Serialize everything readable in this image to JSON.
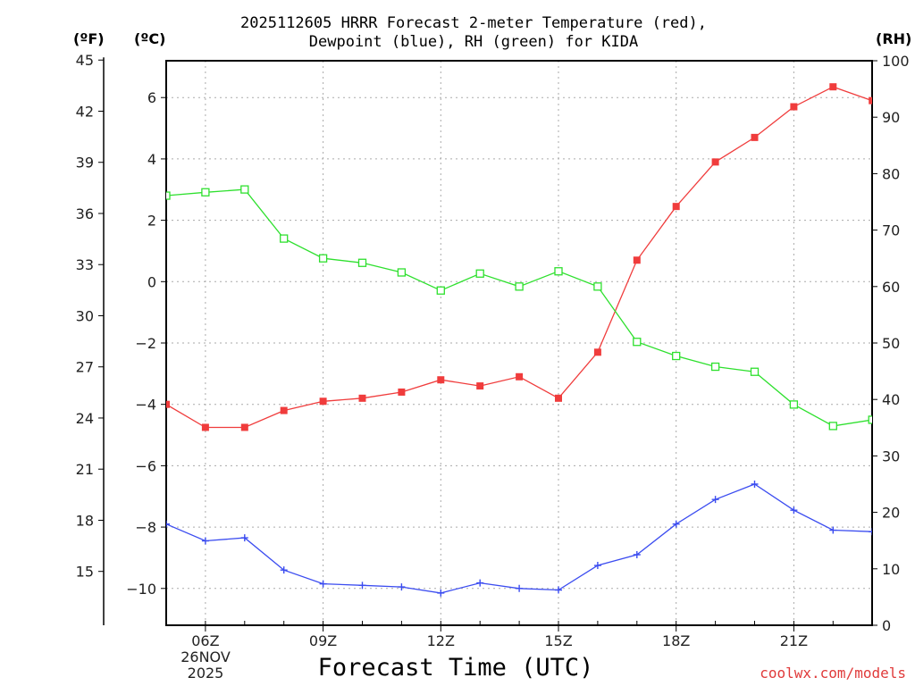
{
  "header": {
    "title_line1": "2025112605 HRRR Forecast 2-meter Temperature (red),",
    "title_line2": "Dewpoint (blue), RH (green) for KIDA"
  },
  "units": {
    "fahrenheit": "(ºF)",
    "celsius": "(ºC)",
    "rh": "(RH)"
  },
  "footer": {
    "xlabel": "Forecast Time (UTC)",
    "date_day": "26NOV",
    "date_year": "2025",
    "credit": "coolwx.com/models"
  },
  "colors": {
    "temperature": "#f03c3c",
    "dewpoint": "#3b4cf0",
    "rh": "#2ee02e",
    "grid": "#aaaaaa"
  },
  "chart_data": {
    "type": "line",
    "x": [
      "05Z",
      "06Z",
      "07Z",
      "08Z",
      "09Z",
      "10Z",
      "11Z",
      "12Z",
      "13Z",
      "14Z",
      "15Z",
      "16Z",
      "17Z",
      "18Z",
      "19Z",
      "20Z",
      "21Z",
      "22Z",
      "23Z"
    ],
    "xticks": [
      "06Z",
      "09Z",
      "12Z",
      "15Z",
      "18Z",
      "21Z"
    ],
    "ylim_c": [
      -11.2,
      7.2
    ],
    "yticks_c": [
      -10,
      -8,
      -6,
      -4,
      -2,
      0,
      2,
      4,
      6
    ],
    "ylim_f": [
      11.84,
      44.96
    ],
    "yticks_f": [
      15,
      18,
      21,
      24,
      27,
      30,
      33,
      36,
      39,
      42,
      45
    ],
    "ylim_rh": [
      0,
      100
    ],
    "yticks_rh": [
      0,
      10,
      20,
      30,
      40,
      50,
      60,
      70,
      80,
      90,
      100
    ],
    "grid": true,
    "series": [
      {
        "name": "Temperature (°C)",
        "axis": "celsius",
        "color": "temperature",
        "marker": "filled-square",
        "values": [
          -4.0,
          -4.75,
          -4.75,
          -4.2,
          -3.9,
          -3.8,
          -3.6,
          -3.2,
          -3.4,
          -3.1,
          -3.8,
          -2.3,
          0.7,
          2.45,
          3.9,
          4.7,
          5.7,
          6.35,
          5.9
        ]
      },
      {
        "name": "Dewpoint (°C)",
        "axis": "celsius",
        "color": "dewpoint",
        "marker": "plus",
        "values": [
          -7.9,
          -8.45,
          -8.35,
          -9.4,
          -9.85,
          -9.9,
          -9.95,
          -10.15,
          -9.82,
          -10.0,
          -10.05,
          -9.25,
          -8.9,
          -7.9,
          -7.1,
          -6.6,
          -7.45,
          -8.1,
          -8.15
        ]
      },
      {
        "name": "RH (%)",
        "axis": "rh",
        "color": "rh",
        "marker": "open-square",
        "values": [
          76.1,
          76.7,
          77.2,
          68.5,
          65.0,
          64.2,
          62.5,
          59.3,
          62.3,
          60.0,
          62.7,
          60.0,
          50.2,
          47.7,
          45.8,
          44.9,
          39.1,
          35.3,
          36.4
        ]
      }
    ]
  }
}
